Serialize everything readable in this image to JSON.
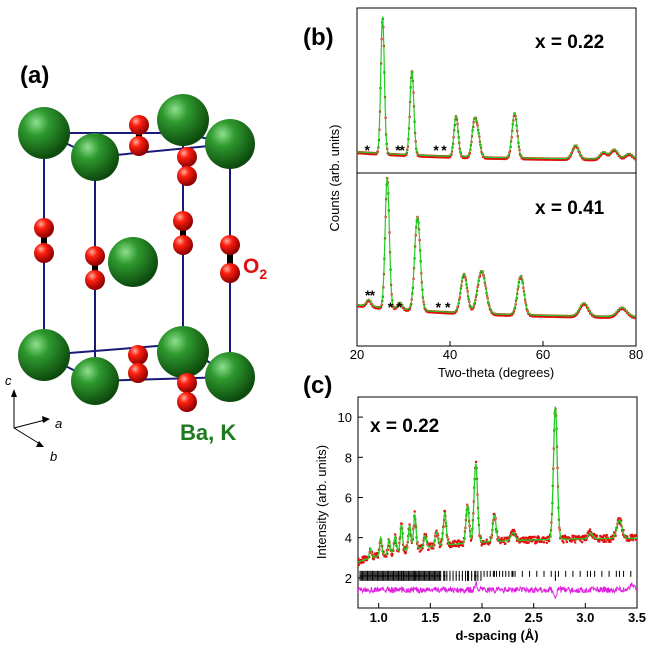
{
  "panel_a": {
    "label": "(a)",
    "o2_label": "O",
    "o2_subscript": "2",
    "cation_label": "Ba, K",
    "axes": {
      "c": "c",
      "a": "a",
      "b": "b"
    },
    "colors": {
      "ba": "#1e7a1e",
      "oxygen": "#e01010",
      "frame": "#1a1a7a",
      "bond": "#000000"
    }
  },
  "panel_b": {
    "label": "(b)",
    "ylabel": "Counts (arb. units)",
    "xlabel": "Two-theta (degrees)",
    "xticks": [
      "20",
      "40",
      "60",
      "80"
    ],
    "top_label": "x = 0.22",
    "bottom_label": "x = 0.41",
    "impurity_marker": "*"
  },
  "panel_c": {
    "label": "(c)",
    "inner_label": "x = 0.22",
    "ylabel": "Intensity (arb. units)",
    "xlabel": "d-spacing (Å)",
    "yticks": [
      "2",
      "4",
      "6",
      "8",
      "10"
    ],
    "xticks": [
      "1.0",
      "1.5",
      "2.0",
      "2.5",
      "3.0",
      "3.5"
    ],
    "colors": {
      "obs": "#e01010",
      "calc": "#22cc22",
      "diff": "#e020e0",
      "ticks": "#000000"
    }
  },
  "chart_data": [
    {
      "type": "line",
      "title": "x = 0.22",
      "xlabel": "Two-theta (degrees)",
      "ylabel": "Counts (arb. units)",
      "xlim": [
        20,
        80
      ],
      "peaks_two_theta": [
        25.5,
        31.8,
        41.3,
        45.2,
        53.9,
        67.0,
        75.3
      ],
      "impurity_peaks_two_theta": [
        22.2,
        28.8,
        29.7,
        37.0,
        38.7
      ],
      "series": [
        {
          "name": "observed"
        },
        {
          "name": "calculated"
        }
      ]
    },
    {
      "type": "line",
      "title": "x = 0.41",
      "xlabel": "Two-theta (degrees)",
      "ylabel": "Counts (arb. units)",
      "xlim": [
        20,
        80
      ],
      "peaks_two_theta": [
        26.5,
        33.0,
        43.0,
        46.8,
        55.2,
        68.8,
        77.0
      ],
      "impurity_peaks_two_theta": [
        22.3,
        23.3,
        27.2,
        29.1,
        37.5,
        39.5
      ],
      "series": [
        {
          "name": "observed"
        },
        {
          "name": "calculated"
        }
      ]
    },
    {
      "type": "line",
      "title": "x = 0.22",
      "xlabel": "d-spacing (Å)",
      "ylabel": "Intensity (arb. units)",
      "xlim": [
        0.8,
        3.5
      ],
      "ylim": [
        0.5,
        11
      ],
      "peaks": [
        {
          "d": 2.71,
          "intensity": 10.2
        },
        {
          "d": 1.94,
          "intensity": 7.2
        },
        {
          "d": 1.86,
          "intensity": 5.2
        },
        {
          "d": 2.12,
          "intensity": 4.6
        },
        {
          "d": 1.64,
          "intensity": 4.8
        },
        {
          "d": 1.35,
          "intensity": 4.7
        },
        {
          "d": 1.22,
          "intensity": 4.3
        },
        {
          "d": 1.02,
          "intensity": 4.0
        },
        {
          "d": 3.33,
          "intensity": 4.5
        }
      ],
      "background_intensity": [
        2.8,
        4.0
      ],
      "reflection_marker_rows": [
        2.2,
        2.0
      ],
      "difference_baseline": 1.4
    }
  ]
}
